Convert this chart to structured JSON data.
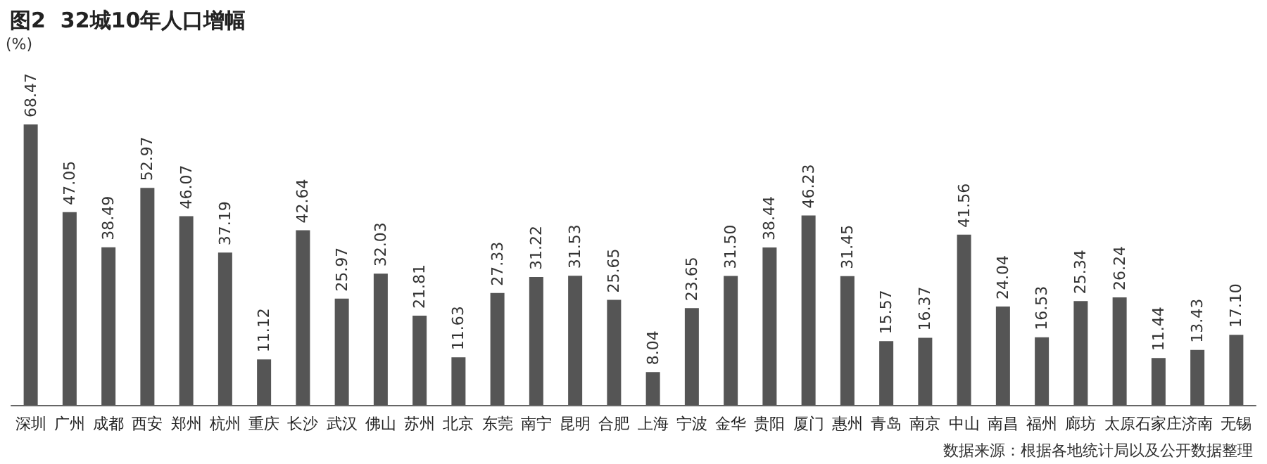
{
  "chart_data": {
    "type": "bar",
    "title": "图2  32城10年人口增幅",
    "ylabel": "(%)",
    "categories": [
      "深圳",
      "广州",
      "成都",
      "西安",
      "郑州",
      "杭州",
      "重庆",
      "长沙",
      "武汉",
      "佛山",
      "苏州",
      "北京",
      "东莞",
      "南宁",
      "昆明",
      "合肥",
      "上海",
      "宁波",
      "金华",
      "贵阳",
      "厦门",
      "惠州",
      "青岛",
      "南京",
      "中山",
      "南昌",
      "福州",
      "廊坊",
      "太原",
      "石家庄",
      "济南",
      "无锡"
    ],
    "values": [
      68.47,
      47.05,
      38.49,
      52.97,
      46.07,
      37.19,
      11.12,
      42.64,
      25.97,
      32.03,
      21.81,
      11.63,
      27.33,
      31.22,
      31.53,
      25.65,
      8.04,
      23.65,
      31.5,
      38.44,
      46.23,
      31.45,
      15.57,
      16.37,
      41.56,
      24.04,
      16.53,
      25.34,
      26.24,
      11.44,
      13.43,
      17.1
    ],
    "value_labels": [
      "68.47",
      "47.05",
      "38.49",
      "52.97",
      "46.07",
      "37.19",
      "11.12",
      "42.64",
      "25.97",
      "32.03",
      "21.81",
      "11.63",
      "27.33",
      "31.22",
      "31.53",
      "25.65",
      "8.04",
      "23.65",
      "31.50",
      "38.44",
      "46.23",
      "31.45",
      "15.57",
      "16.37",
      "41.56",
      "24.04",
      "16.53",
      "25.34",
      "26.24",
      "11.44",
      "13.43",
      "17.10"
    ],
    "color": "#555555",
    "annotations": [
      "数据来源：根据各地统计局以及公开数据整理"
    ]
  }
}
